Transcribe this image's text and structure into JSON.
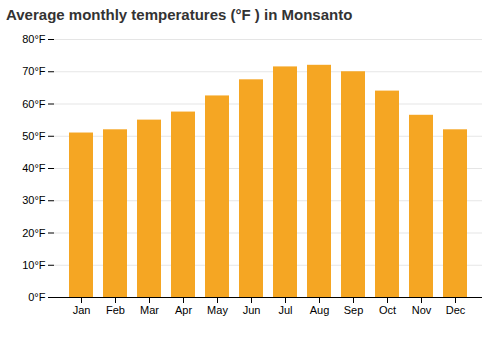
{
  "chart_data": {
    "type": "bar",
    "title": "Average monthly temperatures (°F ) in Monsanto",
    "categories": [
      "Jan",
      "Feb",
      "Mar",
      "Apr",
      "May",
      "Jun",
      "Jul",
      "Aug",
      "Sep",
      "Oct",
      "Nov",
      "Dec"
    ],
    "values": [
      51,
      52,
      55,
      57.5,
      62.5,
      67.5,
      71.5,
      72,
      70,
      64,
      56.5,
      52
    ],
    "color": "#F5A623",
    "ylim": [
      0,
      80
    ],
    "yticks": [
      {
        "value": 0,
        "label": "0°F"
      },
      {
        "value": 10,
        "label": "10°F"
      },
      {
        "value": 20,
        "label": "20°F"
      },
      {
        "value": 30,
        "label": "30°F"
      },
      {
        "value": 40,
        "label": "40°F"
      },
      {
        "value": 50,
        "label": "50°F"
      },
      {
        "value": 60,
        "label": "60°F"
      },
      {
        "value": 70,
        "label": "70°F"
      },
      {
        "value": 80,
        "label": "80°F"
      }
    ],
    "grid": true
  }
}
